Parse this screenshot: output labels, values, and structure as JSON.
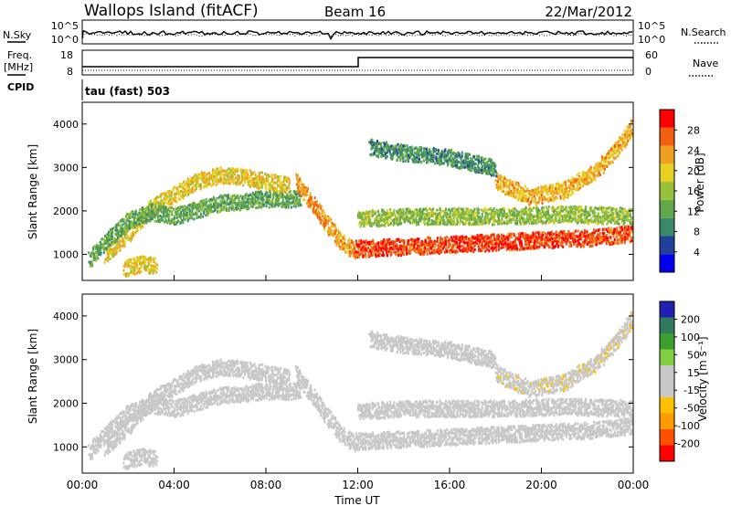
{
  "header": {
    "site": "Wallops Island (fitACF)",
    "beam": "Beam 16",
    "date": "22/Mar/2012"
  },
  "params": {
    "nsky_label": "N.Sky",
    "nsky_ticks": [
      "10^5",
      "10^0"
    ],
    "nsearch_label": "N.Search",
    "nsearch_ticks": [
      "10^5",
      "10^0"
    ],
    "freq_label": "Freq.",
    "freq_unit": "[MHz]",
    "freq_ticks": [
      "18",
      "8"
    ],
    "nave_label": "Nave",
    "nave_ticks": [
      "60",
      "0"
    ],
    "cpid_label": "CPID",
    "cpid_text": "tau (fast) 503"
  },
  "colors": {
    "power_scale": [
      "#0000ee",
      "#20409a",
      "#3a8a6a",
      "#62a84a",
      "#98c038",
      "#e8d020",
      "#f0a020",
      "#f06010",
      "#ff0000"
    ],
    "velocity_scale": [
      "#ff0000",
      "#ff5000",
      "#ff9a00",
      "#ffc000",
      "#c8c8c8",
      "#c8c8c8",
      "#80d040",
      "#3aa030",
      "#307a60",
      "#2020b0"
    ]
  },
  "chart_data": [
    {
      "type": "heatmap",
      "xlabel": "",
      "ylabel": "Slant Range [km]",
      "xlim": [
        0,
        24
      ],
      "ylim": [
        400,
        4500
      ],
      "yticks": [
        "1000",
        "2000",
        "3000",
        "4000"
      ],
      "colorbar_label": "Power [dB]",
      "colorbar_ticks": [
        "4",
        "8",
        "12",
        "16",
        "20",
        "24",
        "28"
      ],
      "colorbar_range": [
        0,
        32
      ],
      "features": [
        {
          "name": "main",
          "points": [
            [
              1.0,
              1000
            ],
            [
              2.0,
              1500
            ],
            [
              3.0,
              2100
            ],
            [
              4.0,
              2400
            ],
            [
              5.0,
              2700
            ],
            [
              6.0,
              2850
            ],
            [
              7.0,
              2800
            ],
            [
              8.0,
              2700
            ],
            [
              9.0,
              2600
            ]
          ],
          "value": 20
        },
        {
          "name": "low",
          "points": [
            [
              0.3,
              900
            ],
            [
              1.0,
              1300
            ],
            [
              2.0,
              1800
            ],
            [
              3.0,
              2000
            ],
            [
              4.0,
              1900
            ],
            [
              6.0,
              2200
            ],
            [
              8.0,
              2300
            ],
            [
              9.5,
              2300
            ]
          ],
          "value": 12
        },
        {
          "name": "arc",
          "points": [
            [
              9.3,
              2700
            ],
            [
              10.0,
              2200
            ],
            [
              10.7,
              1700
            ],
            [
              11.3,
              1300
            ],
            [
              11.9,
              1050
            ]
          ],
          "value": 24
        },
        {
          "name": "band",
          "points": [
            [
              11.9,
              1150
            ],
            [
              14.0,
              1200
            ],
            [
              16.0,
              1250
            ],
            [
              18.0,
              1300
            ],
            [
              20.0,
              1350
            ],
            [
              22.0,
              1400
            ],
            [
              24.0,
              1500
            ]
          ],
          "value": 28
        },
        {
          "name": "upper",
          "points": [
            [
              12.0,
              1850
            ],
            [
              15.0,
              1900
            ],
            [
              18.0,
              1900
            ],
            [
              21.0,
              1950
            ],
            [
              24.0,
              1900
            ]
          ],
          "value": 15
        },
        {
          "name": "rise",
          "points": [
            [
              18.0,
              2700
            ],
            [
              19.5,
              2350
            ],
            [
              21.0,
              2500
            ],
            [
              22.5,
              3000
            ],
            [
              23.5,
              3600
            ],
            [
              24.0,
              4000
            ]
          ],
          "value": 22
        },
        {
          "name": "top",
          "points": [
            [
              12.5,
              3500
            ],
            [
              14.0,
              3350
            ],
            [
              16.0,
              3250
            ],
            [
              18.0,
              3000
            ]
          ],
          "value": 10
        },
        {
          "name": "patch",
          "points": [
            [
              1.8,
              700
            ],
            [
              2.6,
              800
            ],
            [
              3.2,
              750
            ]
          ],
          "value": 20
        }
      ]
    },
    {
      "type": "heatmap",
      "xlabel": "Time UT",
      "ylabel": "Slant Range [km]",
      "xlim": [
        0,
        24
      ],
      "ylim": [
        400,
        4500
      ],
      "xticks": [
        "00:00",
        "04:00",
        "08:00",
        "12:00",
        "16:00",
        "20:00",
        "00:00"
      ],
      "yticks": [
        "1000",
        "2000",
        "3000",
        "4000"
      ],
      "colorbar_label": "Velocity [m s⁻¹]",
      "colorbar_ticks": [
        "200",
        "100",
        "50",
        "15",
        "-15",
        "-50",
        "-100",
        "-200"
      ],
      "colorbar_range": [
        -250,
        250
      ],
      "features": [
        {
          "name": "main",
          "points": [
            [
              1.0,
              1000
            ],
            [
              2.0,
              1500
            ],
            [
              3.0,
              2100
            ],
            [
              4.0,
              2400
            ],
            [
              5.0,
              2700
            ],
            [
              6.0,
              2850
            ],
            [
              7.0,
              2800
            ],
            [
              8.0,
              2700
            ],
            [
              9.0,
              2600
            ]
          ],
          "value": 0
        },
        {
          "name": "low",
          "points": [
            [
              0.3,
              900
            ],
            [
              1.0,
              1300
            ],
            [
              2.0,
              1800
            ],
            [
              3.0,
              2000
            ],
            [
              4.0,
              1900
            ],
            [
              6.0,
              2200
            ],
            [
              8.0,
              2300
            ],
            [
              9.5,
              2300
            ]
          ],
          "value": 0
        },
        {
          "name": "arc",
          "points": [
            [
              9.3,
              2700
            ],
            [
              10.0,
              2200
            ],
            [
              10.7,
              1700
            ],
            [
              11.3,
              1300
            ],
            [
              11.9,
              1050
            ]
          ],
          "value": 0
        },
        {
          "name": "band",
          "points": [
            [
              11.9,
              1150
            ],
            [
              14.0,
              1200
            ],
            [
              16.0,
              1250
            ],
            [
              18.0,
              1300
            ],
            [
              20.0,
              1350
            ],
            [
              22.0,
              1400
            ],
            [
              24.0,
              1500
            ]
          ],
          "value": 0
        },
        {
          "name": "upper",
          "points": [
            [
              12.0,
              1850
            ],
            [
              15.0,
              1900
            ],
            [
              18.0,
              1900
            ],
            [
              21.0,
              1950
            ],
            [
              24.0,
              1900
            ]
          ],
          "value": 0
        },
        {
          "name": "rise",
          "points": [
            [
              18.0,
              2700
            ],
            [
              19.5,
              2350
            ],
            [
              21.0,
              2500
            ],
            [
              22.5,
              3000
            ],
            [
              23.5,
              3600
            ],
            [
              24.0,
              4000
            ]
          ],
          "value": -40
        },
        {
          "name": "top",
          "points": [
            [
              12.5,
              3500
            ],
            [
              14.0,
              3350
            ],
            [
              16.0,
              3250
            ],
            [
              18.0,
              3000
            ]
          ],
          "value": 0
        },
        {
          "name": "patch",
          "points": [
            [
              1.8,
              700
            ],
            [
              2.6,
              800
            ],
            [
              3.2,
              750
            ]
          ],
          "value": 35
        }
      ]
    }
  ]
}
